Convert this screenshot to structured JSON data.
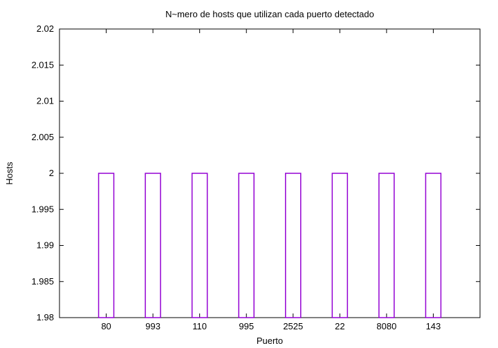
{
  "chart_data": {
    "type": "bar",
    "title": "N~mero de hosts que utilizan cada puerto detectado",
    "xlabel": "Puerto",
    "ylabel": "Hosts",
    "categories": [
      "80",
      "993",
      "110",
      "995",
      "2525",
      "22",
      "8080",
      "143"
    ],
    "values": [
      2,
      2,
      2,
      2,
      2,
      2,
      2,
      2
    ],
    "ylim": [
      1.98,
      2.02
    ],
    "yticks": [
      "1.98",
      "1.985",
      "1.99",
      "1.995",
      "2",
      "2.005",
      "2.01",
      "2.015",
      "2.02"
    ],
    "grid": false,
    "legend": "none",
    "bar_color": "#9400d3",
    "bar_fill": "none"
  }
}
